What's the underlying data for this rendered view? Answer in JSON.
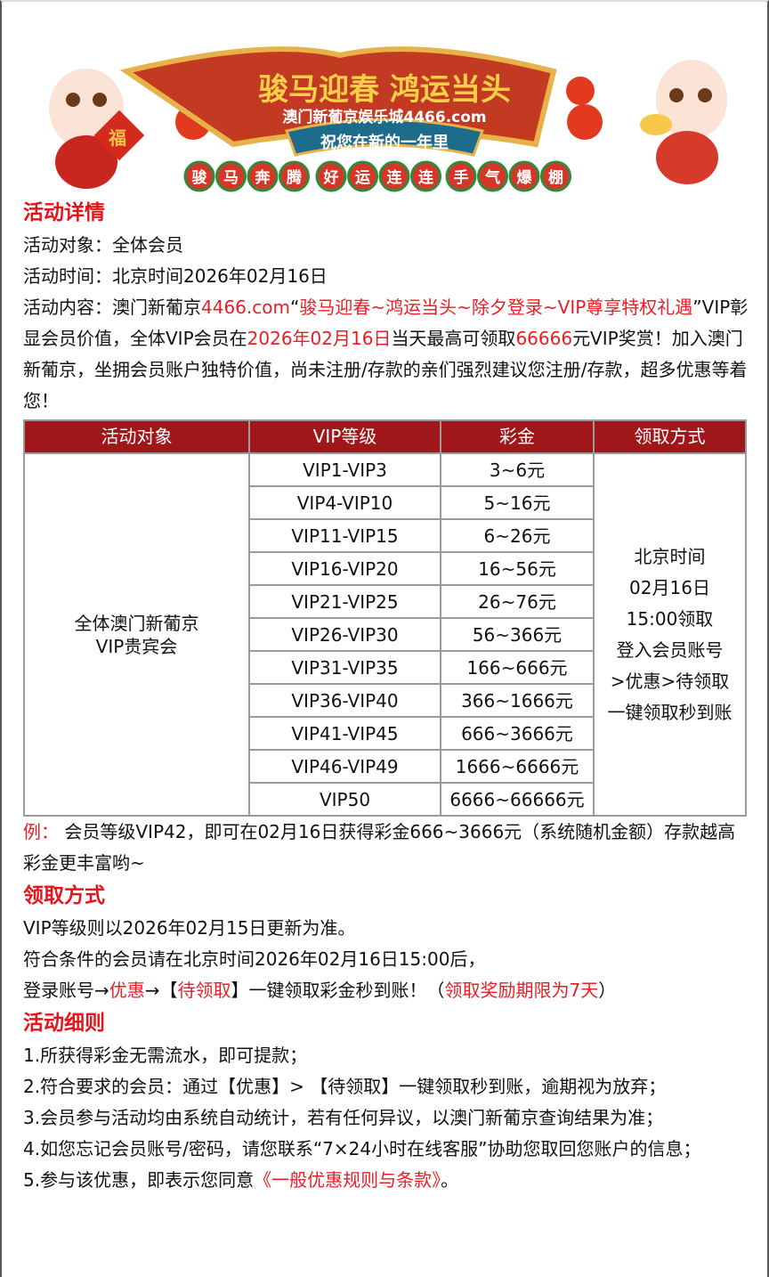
{
  "banner": {
    "title": "骏马迎春 鸿运当头",
    "subtitle": "澳门新葡京娱乐城4466.com",
    "ribbon": "祝您在新的一年里",
    "badges": [
      "骏",
      "马",
      "奔",
      "腾",
      "好",
      "运",
      "连",
      "连",
      "手",
      "气",
      "爆",
      "棚"
    ],
    "fu": "福"
  },
  "details": {
    "heading": "活动详情",
    "target_label": "活动对象：",
    "target": "全体会员",
    "time_label": "活动时间：",
    "time": "北京时间2026年02月16日",
    "content_label": "活动内容：",
    "c1": "澳门新葡京",
    "c2": "4466.com",
    "c3": "“",
    "c4": "骏马迎春~鸿运当头~除夕登录~VIP尊享特权礼遇",
    "c5": "”VIP彰显会员价值，全体VIP会员在",
    "c6": "2026年02月16日",
    "c7": "当天最高可领取",
    "c8": "66666",
    "c9": "元VIP奖赏！加入澳门新葡京，坐拥会员账户独特价值，尚未注册/存款的亲们强烈建议您注册/存款，超多优惠等着您！"
  },
  "table": {
    "headers": [
      "活动对象",
      "VIP等级",
      "彩金",
      "领取方式"
    ],
    "target": [
      "全体澳门新葡京",
      "VIP贵宾会"
    ],
    "rows": [
      [
        "VIP1-VIP3",
        "3~6元"
      ],
      [
        "VIP4-VIP10",
        "5~16元"
      ],
      [
        "VIP11-VIP15",
        "6~26元"
      ],
      [
        "VIP16-VIP20",
        "16~56元"
      ],
      [
        "VIP21-VIP25",
        "26~76元"
      ],
      [
        "VIP26-VIP30",
        "56~366元"
      ],
      [
        "VIP31-VIP35",
        "166~666元"
      ],
      [
        "VIP36-VIP40",
        "366~1666元"
      ],
      [
        "VIP41-VIP45",
        "666~3666元"
      ],
      [
        "VIP46-VIP49",
        "1666~6666元"
      ],
      [
        "VIP50",
        "6666~66666元"
      ]
    ],
    "method": [
      "北京时间",
      "02月16日",
      "15:00领取",
      "登入会员账号",
      ">优惠>待领取",
      "一键领取秒到账"
    ]
  },
  "example": {
    "label": "例：",
    "text": "会员等级VIP42，即可在02月16日获得彩金666~3666元（系统随机金额）存款越高彩金更丰富哟~"
  },
  "claim": {
    "heading": "领取方式",
    "l1": "VIP等级则以2026年02月15日更新为准。",
    "l2": "符合条件的会员请在北京时间2026年02月16日15:00后，",
    "l3a": "登录账号→",
    "l3b": "优惠",
    "l3c": "→【",
    "l3d": "待领取",
    "l3e": "】一键领取彩金秒到账！（",
    "l3f": "领取奖励期限为7天",
    "l3g": "）"
  },
  "rules": {
    "heading": "活动细则",
    "items": [
      "1.所获得彩金无需流水，即可提款；",
      "2.符合要求的会员：通过【优惠】> 【待领取】一键领取秒到账，逾期视为放弃；",
      "3.会员参与活动均由系统自动统计，若有任何异议，以澳门新葡京查询结果为准；",
      "4.如您忘记会员账号/密码，请您联系“7×24小时在线客服”协助您取回您账户的信息；"
    ],
    "i5a": "5.参与该优惠，即表示您同意",
    "i5b": "《一般优惠规则与条款》",
    "i5c": "。"
  },
  "colors": {
    "accent": "#ee1c24",
    "header": "#a0171b"
  }
}
